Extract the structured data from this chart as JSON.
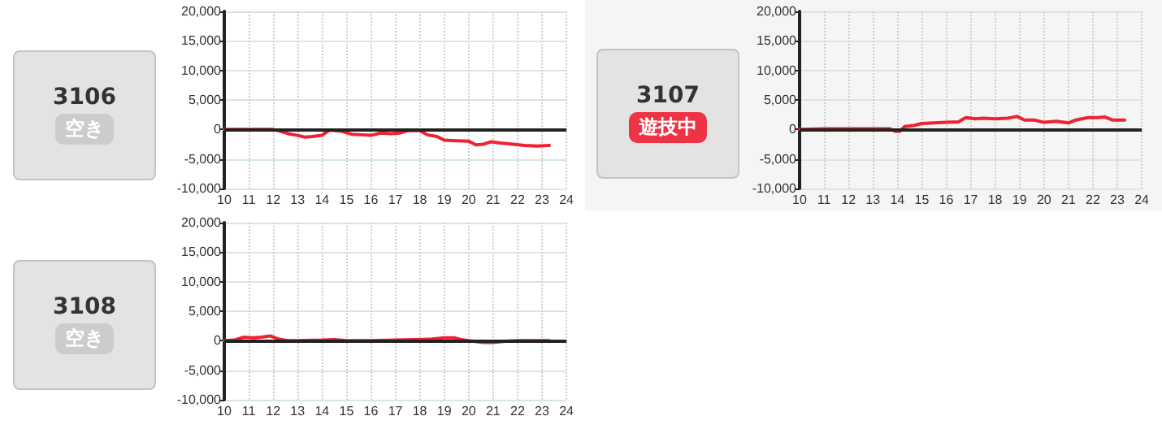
{
  "chart_data": [
    {
      "type": "other",
      "title": "3106",
      "subtitle": "空き",
      "color": "#cccccc"
    },
    {
      "type": "line",
      "x": [
        10,
        12,
        12.3,
        12.6,
        13,
        13.3,
        13.6,
        14,
        14.3,
        14.8,
        15.2,
        15.6,
        16,
        16.4,
        16.8,
        17.2,
        17.5,
        18,
        18.3,
        18.7,
        19,
        19.5,
        20,
        20.3,
        20.6,
        20.9,
        21.3,
        21.8,
        22.3,
        22.8,
        23.3
      ],
      "values": [
        0,
        0,
        -300,
        -700,
        -1000,
        -1300,
        -1200,
        -1000,
        -100,
        -300,
        -800,
        -900,
        -1000,
        -600,
        -700,
        -600,
        -200,
        -200,
        -900,
        -1200,
        -1800,
        -1900,
        -2000,
        -2600,
        -2500,
        -2100,
        -2300,
        -2500,
        -2700,
        -2800,
        -2700
      ],
      "color": "#ee2233",
      "xlim": [
        10,
        24
      ],
      "xticks": [
        10,
        11,
        12,
        13,
        14,
        15,
        16,
        17,
        18,
        19,
        20,
        21,
        22,
        23,
        24
      ],
      "ylim": [
        -10000,
        20000
      ],
      "yticks": [
        {
          "value": -10000,
          "label": "-10,000"
        },
        {
          "value": -5000,
          "label": "-5,000"
        },
        {
          "value": 0,
          "label": "0"
        },
        {
          "value": 5000,
          "label": "5,000"
        },
        {
          "value": 10000,
          "label": "10,000"
        },
        {
          "value": 15000,
          "label": "15,000"
        },
        {
          "value": 20000,
          "label": "20,000"
        }
      ],
      "ref_lines": [
        {
          "axis": "y",
          "value": 0,
          "color": "#222222"
        }
      ],
      "grid": true,
      "marker": "none"
    },
    {
      "type": "other",
      "title": "3107",
      "subtitle": "遊技中",
      "color": "#ee3344"
    },
    {
      "type": "line",
      "x": [
        10,
        11,
        12,
        13,
        13.7,
        13.9,
        14.1,
        14.3,
        14.7,
        15,
        15.5,
        16,
        16.5,
        16.8,
        17.2,
        17.5,
        18,
        18.5,
        18.9,
        19.2,
        19.6,
        20,
        20.5,
        21,
        21.3,
        21.8,
        22.2,
        22.5,
        22.8,
        23.3
      ],
      "values": [
        0,
        100,
        100,
        100,
        100,
        -300,
        -300,
        500,
        700,
        1000,
        1100,
        1200,
        1300,
        2000,
        1800,
        1900,
        1800,
        1900,
        2200,
        1600,
        1600,
        1200,
        1400,
        1100,
        1600,
        2000,
        2000,
        2100,
        1600,
        1600
      ],
      "color": "#ee2233",
      "xlim": [
        10,
        24
      ],
      "xticks": [
        10,
        11,
        12,
        13,
        14,
        15,
        16,
        17,
        18,
        19,
        20,
        21,
        22,
        23,
        24
      ],
      "ylim": [
        -10000,
        20000
      ],
      "yticks": [
        {
          "value": -10000,
          "label": "-10,000"
        },
        {
          "value": -5000,
          "label": "-5,000"
        },
        {
          "value": 0,
          "label": "0"
        },
        {
          "value": 5000,
          "label": "5,000"
        },
        {
          "value": 10000,
          "label": "10,000"
        },
        {
          "value": 15000,
          "label": "15,000"
        },
        {
          "value": 20000,
          "label": "20,000"
        }
      ],
      "ref_lines": [
        {
          "axis": "y",
          "value": 0,
          "color": "#222222"
        }
      ],
      "grid": true,
      "marker": "none"
    },
    {
      "type": "other",
      "title": "3108",
      "subtitle": "空き",
      "color": "#cccccc"
    },
    {
      "type": "line",
      "x": [
        10,
        10.4,
        10.8,
        11.2,
        11.5,
        11.9,
        12.2,
        12.6,
        13,
        14,
        14.5,
        15,
        16,
        17,
        18,
        18.5,
        19,
        19.4,
        19.7,
        20,
        20.6,
        21,
        21.5,
        22,
        23,
        23.3
      ],
      "values": [
        0,
        100,
        600,
        500,
        600,
        800,
        300,
        0,
        0,
        100,
        200,
        0,
        0,
        100,
        200,
        300,
        500,
        500,
        200,
        0,
        -300,
        -300,
        -100,
        0,
        0,
        0
      ],
      "color": "#ee2233",
      "xlim": [
        10,
        24
      ],
      "xticks": [
        10,
        11,
        12,
        13,
        14,
        15,
        16,
        17,
        18,
        19,
        20,
        21,
        22,
        23,
        24
      ],
      "ylim": [
        -10000,
        20000
      ],
      "yticks": [
        {
          "value": -10000,
          "label": "-10,000"
        },
        {
          "value": -5000,
          "label": "-5,000"
        },
        {
          "value": 0,
          "label": "0"
        },
        {
          "value": 5000,
          "label": "5,000"
        },
        {
          "value": 10000,
          "label": "10,000"
        },
        {
          "value": 15000,
          "label": "15,000"
        },
        {
          "value": 20000,
          "label": "20,000"
        }
      ],
      "ref_lines": [
        {
          "axis": "y",
          "value": 0,
          "color": "#222222"
        }
      ],
      "grid": true,
      "marker": "none"
    }
  ]
}
